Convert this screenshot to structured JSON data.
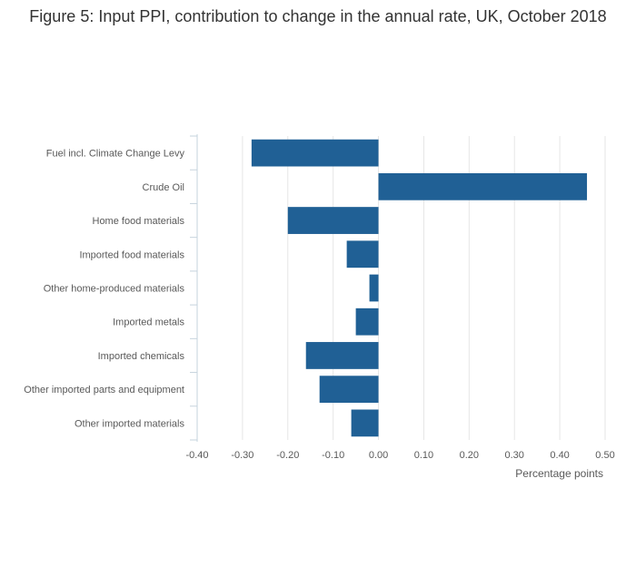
{
  "title": "Figure 5: Input PPI, contribution to change in the annual rate, UK, October 2018",
  "chart_data": {
    "type": "bar",
    "orientation": "horizontal",
    "title": "Figure 5: Input PPI, contribution to change in the annual rate, UK, October 2018",
    "categories": [
      "Fuel incl. Climate Change Levy",
      "Crude Oil",
      "Home food materials",
      "Imported food materials",
      "Other home-produced materials",
      "Imported metals",
      "Imported chemicals",
      "Other imported parts and equipment",
      "Other imported materials"
    ],
    "values": [
      -0.28,
      0.46,
      -0.2,
      -0.07,
      -0.02,
      -0.05,
      -0.16,
      -0.13,
      -0.06
    ],
    "xlabel": "Percentage points",
    "ylabel": "",
    "xlim": [
      -0.4,
      0.5
    ],
    "xticks": [
      "-0.40",
      "-0.30",
      "-0.20",
      "-0.10",
      "0.00",
      "0.10",
      "0.20",
      "0.30",
      "0.40",
      "0.50"
    ],
    "grid": true,
    "bar_color": "#206095",
    "grid_color": "#e6e6e6"
  }
}
